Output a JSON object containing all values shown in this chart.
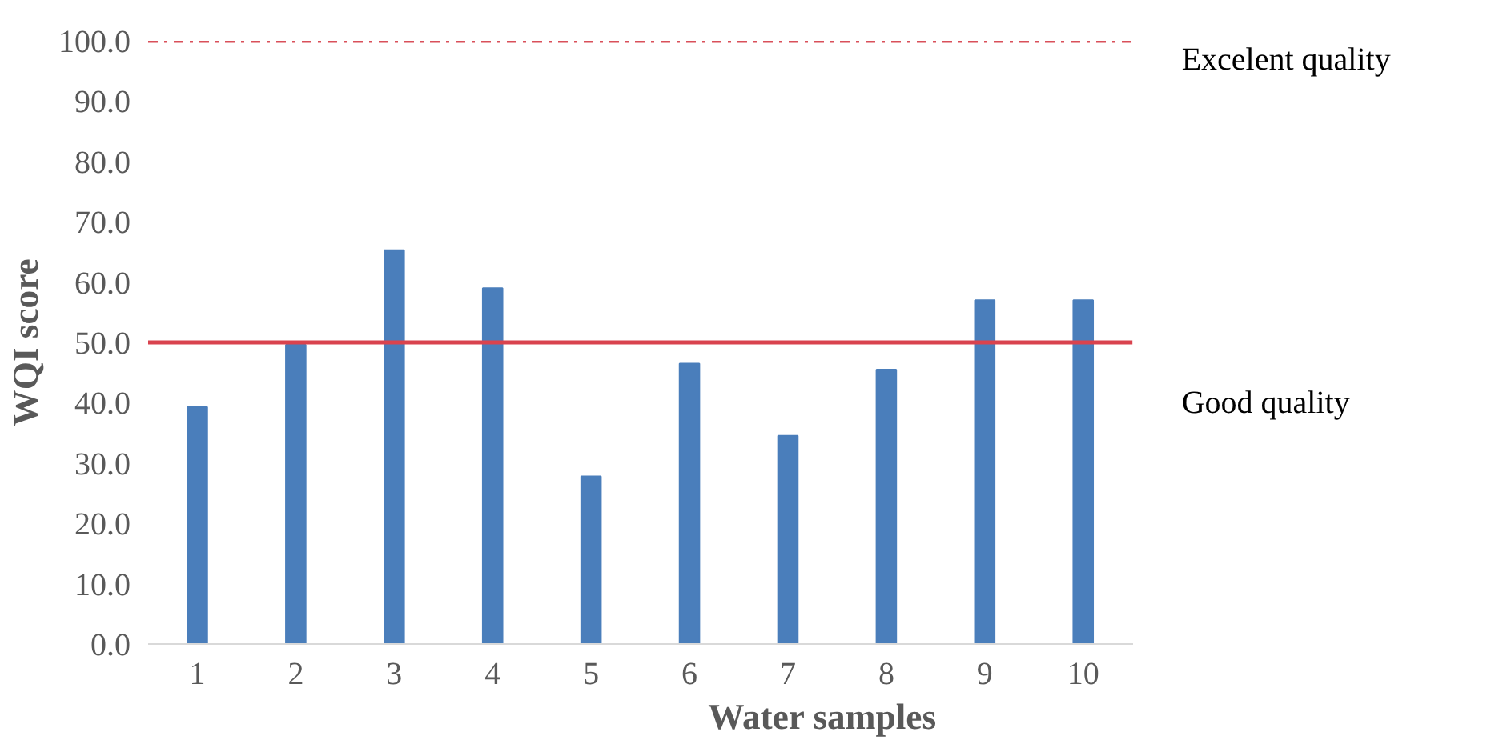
{
  "chart_data": {
    "type": "bar",
    "xlabel": "Water samples",
    "ylabel": "WQI score",
    "categories": [
      "1",
      "2",
      "3",
      "4",
      "5",
      "6",
      "7",
      "8",
      "9",
      "10"
    ],
    "values": [
      39.3,
      49.6,
      65.3,
      59.0,
      27.8,
      46.5,
      34.5,
      45.5,
      57.0,
      57.0
    ],
    "color": "#4a7ebb",
    "ylim": [
      0,
      100
    ],
    "yticks": [
      {
        "value": 0,
        "label": "0.0"
      },
      {
        "value": 10,
        "label": "10.0"
      },
      {
        "value": 20,
        "label": "20.0"
      },
      {
        "value": 30,
        "label": "30.0"
      },
      {
        "value": 40,
        "label": "40.0"
      },
      {
        "value": 50,
        "label": "50.0"
      },
      {
        "value": 60,
        "label": "60.0"
      },
      {
        "value": 70,
        "label": "70.0"
      },
      {
        "value": 80,
        "label": "80.0"
      },
      {
        "value": 90,
        "label": "90.0"
      },
      {
        "value": 100,
        "label": "100.0"
      }
    ],
    "ref_lines": [
      {
        "axis": "y",
        "value": 100,
        "label": "Excelent quality",
        "color": "#d9505a",
        "line_style": "dashdot"
      },
      {
        "axis": "y",
        "value": 50,
        "label": "Good quality",
        "color": "#d9434e",
        "line_style": "solid"
      }
    ],
    "grid": false
  }
}
